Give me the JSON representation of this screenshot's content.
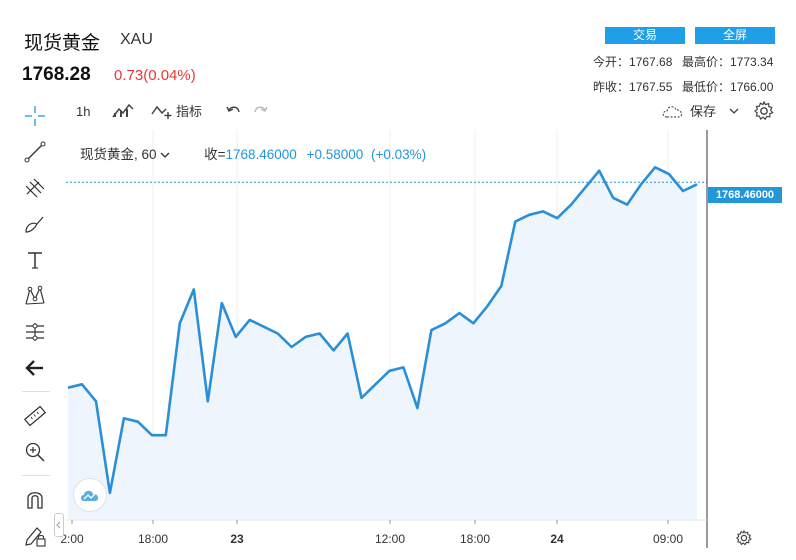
{
  "header": {
    "title": "现货黄金",
    "symbol": "XAU",
    "price": "1768.28",
    "change": "0.73(0.04%)",
    "trade_button": "交易",
    "fullscreen_button": "全屏",
    "stats": {
      "open_label": "今开：",
      "open_value": "1767.68",
      "high_label": "最高价：",
      "high_value": "1773.34",
      "prev_close_label": "昨收：",
      "prev_close_value": "1767.55",
      "low_label": "最低价：",
      "low_value": "1766.00"
    }
  },
  "toolbar": {
    "interval": "1h",
    "indicators_label": "指标",
    "save_label": "保存"
  },
  "legend": {
    "name": "现货黄金",
    "period": "60",
    "close_label": "收=",
    "close_value": "1768.46000",
    "change_value": "+0.58000",
    "change_pct": "(+0.03%)"
  },
  "price_tag": "1768.46000",
  "icons": {
    "left_tools": [
      "crosshair-icon",
      "trend-line-icon",
      "fib-icon",
      "brush-icon",
      "text-icon",
      "pattern-icon",
      "projection-icon",
      "arrow-left-icon",
      "ruler-icon",
      "zoom-in-icon",
      "magnet-icon",
      "lock-draw-icon"
    ]
  },
  "colors": {
    "line": "#2b8fd8",
    "area": "#eef5fc",
    "accent": "#1e9fe8",
    "down": "#e53935"
  },
  "chart_data": {
    "type": "area",
    "title": "",
    "xlabel": "",
    "ylabel": "",
    "x_tick_labels": [
      "2:00",
      "18:00",
      "23",
      "12:00",
      "18:00",
      "24",
      "09:00"
    ],
    "values": [
      1762.4,
      1762.5,
      1762.0,
      1759.3,
      1761.5,
      1761.4,
      1761.0,
      1761.0,
      1764.3,
      1765.3,
      1762.0,
      1764.9,
      1763.9,
      1764.4,
      1764.2,
      1764.0,
      1763.6,
      1763.9,
      1764.0,
      1763.5,
      1764.0,
      1762.1,
      1762.5,
      1762.9,
      1763.0,
      1761.8,
      1764.1,
      1764.3,
      1764.6,
      1764.3,
      1764.8,
      1765.4,
      1767.3,
      1767.5,
      1767.6,
      1767.4,
      1767.8,
      1768.3,
      1768.8,
      1768.0,
      1767.8,
      1768.4,
      1768.9,
      1768.7,
      1768.2,
      1768.4
    ],
    "last_value": 1768.46,
    "ylim": [
      1758.5,
      1770.0
    ],
    "grid": true
  }
}
